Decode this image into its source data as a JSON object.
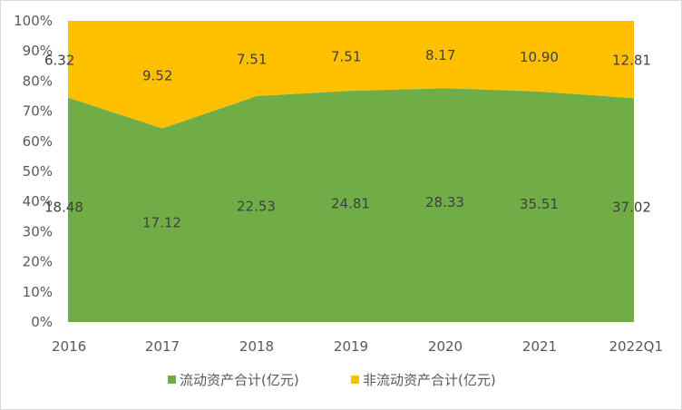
{
  "chart_data": {
    "type": "area",
    "stacking": "percent",
    "categories": [
      "2016",
      "2017",
      "2018",
      "2019",
      "2020",
      "2021",
      "2022Q1"
    ],
    "series": [
      {
        "name": "流动资产合计(亿元)",
        "color": "#70ad47",
        "values": [
          18.48,
          17.12,
          22.53,
          24.81,
          28.33,
          35.51,
          37.02
        ],
        "labels": [
          "18.48",
          "17.12",
          "22.53",
          "24.81",
          "28.33",
          "35.51",
          "37.02"
        ]
      },
      {
        "name": "非流动资产合计(亿元)",
        "color": "#ffc000",
        "values": [
          6.32,
          9.52,
          7.51,
          7.51,
          8.17,
          10.9,
          12.81
        ],
        "labels": [
          "6.32",
          "9.52",
          "7.51",
          "7.51",
          "8.17",
          "10.90",
          "12.81"
        ]
      }
    ],
    "y_ticks": [
      "0%",
      "10%",
      "20%",
      "30%",
      "40%",
      "50%",
      "60%",
      "70%",
      "80%",
      "90%",
      "100%"
    ],
    "ylim": [
      0,
      100
    ],
    "grid": false,
    "legend_position": "bottom"
  }
}
